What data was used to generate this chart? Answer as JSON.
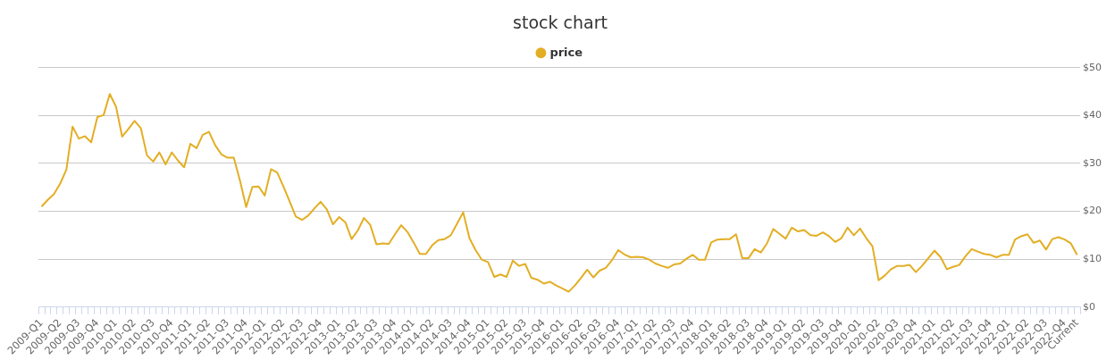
{
  "chart_data": {
    "type": "line",
    "title": "stock chart",
    "categories": [
      "2009-Q1",
      null,
      null,
      "2009-Q2",
      null,
      null,
      "2009-Q3",
      null,
      null,
      "2009-Q4",
      null,
      null,
      "2010-Q1",
      null,
      null,
      "2010-Q2",
      null,
      null,
      "2010-Q3",
      null,
      null,
      "2010-Q4",
      null,
      null,
      "2011-Q1",
      null,
      null,
      "2011-Q2",
      null,
      null,
      "2011-Q3",
      null,
      null,
      "2011-Q4",
      null,
      null,
      "2012-Q1",
      null,
      null,
      "2012-Q2",
      null,
      null,
      "2012-Q3",
      null,
      null,
      "2012-Q4",
      null,
      null,
      "2013-Q1",
      null,
      null,
      "2013-Q2",
      null,
      null,
      "2013-Q3",
      null,
      null,
      "2013-Q4",
      null,
      null,
      "2014-Q1",
      null,
      null,
      "2014-Q2",
      null,
      null,
      "2014-Q3",
      null,
      null,
      "2014-Q4",
      null,
      null,
      "2015-Q1",
      null,
      null,
      "2015-Q2",
      null,
      null,
      "2015-Q3",
      null,
      null,
      "2015-Q4",
      null,
      null,
      "2016-Q1",
      null,
      null,
      "2016-Q2",
      null,
      null,
      "2016-Q3",
      null,
      null,
      "2016-Q4",
      null,
      null,
      "2017-Q1",
      null,
      null,
      "2017-Q2",
      null,
      null,
      "2017-Q3",
      null,
      null,
      "2017-Q4",
      null,
      null,
      "2018-Q1",
      null,
      null,
      "2018-Q2",
      null,
      null,
      "2018-Q3",
      null,
      null,
      "2018-Q4",
      null,
      null,
      "2019-Q1",
      null,
      null,
      "2019-Q2",
      null,
      null,
      "2019-Q3",
      null,
      null,
      "2019-Q4",
      null,
      null,
      "2020-Q1",
      null,
      null,
      "2020-Q2",
      null,
      null,
      "2020-Q3",
      null,
      null,
      "2020-Q4",
      null,
      null,
      "2021-Q1",
      null,
      null,
      "2021-Q2",
      null,
      null,
      "2021-Q3",
      null,
      null,
      "2021-Q4",
      null,
      null,
      "2022-Q1",
      null,
      null,
      "2022-Q2",
      null,
      null,
      "2022-Q3",
      null,
      null,
      "2022-Q4",
      null,
      "Current"
    ],
    "series": [
      {
        "name": "price",
        "color": "#e3ae24",
        "values": [
          21.0,
          22.4,
          23.6,
          25.8,
          28.7,
          37.7,
          35.2,
          35.7,
          34.4,
          39.7,
          40.1,
          44.5,
          41.9,
          35.6,
          37.2,
          38.9,
          37.4,
          31.7,
          30.4,
          32.3,
          29.8,
          32.3,
          30.6,
          29.2,
          34.1,
          33.2,
          36.0,
          36.6,
          33.8,
          31.9,
          31.2,
          31.2,
          26.4,
          20.9,
          25.1,
          25.2,
          23.3,
          28.8,
          28.1,
          25.2,
          22.1,
          18.9,
          18.2,
          19.1,
          20.6,
          22.0,
          20.4,
          17.3,
          18.8,
          17.7,
          14.2,
          16.0,
          18.6,
          17.2,
          13.1,
          13.3,
          13.2,
          15.2,
          17.1,
          15.7,
          13.5,
          11.1,
          11.1,
          12.9,
          14.0,
          14.2,
          15.0,
          17.4,
          19.8,
          14.4,
          11.9,
          9.9,
          9.4,
          6.3,
          6.8,
          6.3,
          9.7,
          8.6,
          9.0,
          6.1,
          5.7,
          4.9,
          5.3,
          4.5,
          3.9,
          3.2,
          4.5,
          6.1,
          7.8,
          6.2,
          7.6,
          8.2,
          9.8,
          11.9,
          11.0,
          10.4,
          10.5,
          10.4,
          9.9,
          9.1,
          8.6,
          8.2,
          8.9,
          9.1,
          10.1,
          10.9,
          9.9,
          9.9,
          13.5,
          14.1,
          14.2,
          14.2,
          15.2,
          10.2,
          10.2,
          12.1,
          11.4,
          13.3,
          16.3,
          15.3,
          14.3,
          16.6,
          15.8,
          16.1,
          15.0,
          14.9,
          15.6,
          14.8,
          13.6,
          14.4,
          16.6,
          15.0,
          16.4,
          14.4,
          12.7,
          5.6,
          6.6,
          7.9,
          8.6,
          8.6,
          8.8,
          7.3,
          8.6,
          10.2,
          11.8,
          10.4,
          7.9,
          8.4,
          8.8,
          10.6,
          12.1,
          11.6,
          11.1,
          10.9,
          10.4,
          10.9,
          10.9,
          14.1,
          14.8,
          15.2,
          13.4,
          13.9,
          12.0,
          14.2,
          14.6,
          14.1,
          13.3,
          10.9
        ]
      }
    ],
    "ylim": [
      0,
      50
    ],
    "yticks": [
      {
        "value": 0,
        "label": "$0"
      },
      {
        "value": 10,
        "label": "$10"
      },
      {
        "value": 20,
        "label": "$20"
      },
      {
        "value": 30,
        "label": "$30"
      },
      {
        "value": 40,
        "label": "$40"
      },
      {
        "value": 50,
        "label": "$50"
      }
    ],
    "grid": "y",
    "legend": "top",
    "marker": "none"
  }
}
